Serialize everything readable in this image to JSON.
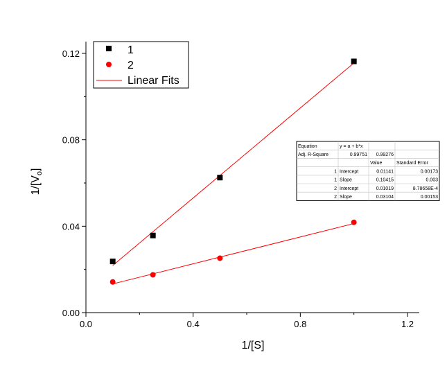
{
  "chart_data": {
    "type": "scatter",
    "xlabel": "1/[S]",
    "ylabel": {
      "main": "1/[V",
      "sub": "o",
      "tail": "]"
    },
    "xlim": [
      0,
      1.2
    ],
    "ylim": [
      0,
      0.12
    ],
    "xticks": [
      "0.0",
      "0.4",
      "0.8",
      "1.2"
    ],
    "xtick_values": [
      0,
      0.4,
      0.8,
      1.2
    ],
    "yticks": [
      "0.00",
      "0.04",
      "0.08",
      "0.12"
    ],
    "ytick_values": [
      0,
      0.04,
      0.08,
      0.12
    ],
    "grid": false,
    "legend_position": "top-left",
    "series": [
      {
        "name": "1",
        "marker": "square",
        "color": "#000000",
        "x": [
          0.1,
          0.25,
          0.5,
          1.0
        ],
        "y": [
          0.0237,
          0.0357,
          0.0625,
          0.1163
        ],
        "fit": {
          "intercept": 0.01141,
          "slope": 0.10415
        }
      },
      {
        "name": "2",
        "marker": "circle",
        "color": "#ff0000",
        "x": [
          0.1,
          0.25,
          0.5,
          1.0
        ],
        "y": [
          0.0142,
          0.0175,
          0.0252,
          0.0418
        ],
        "fit": {
          "intercept": 0.01019,
          "slope": 0.03104
        }
      }
    ],
    "fit_line": {
      "label": "Linear Fits",
      "color": "#ff0000"
    },
    "stats_table": [
      [
        "Equation",
        "y = a + b*x",
        "",
        ""
      ],
      [
        "Adj. R-Square",
        "0.99751",
        "0.99276",
        ""
      ],
      [
        "",
        "",
        "Value",
        "Standard Error"
      ],
      [
        "1",
        "Intercept",
        "0.01141",
        "0.00173"
      ],
      [
        "1",
        "Slope",
        "0.10415",
        "0.003"
      ],
      [
        "2",
        "Intercept",
        "0.01019",
        "8.78658E-4"
      ],
      [
        "2",
        "Slope",
        "0.03104",
        "0.00153"
      ]
    ]
  }
}
